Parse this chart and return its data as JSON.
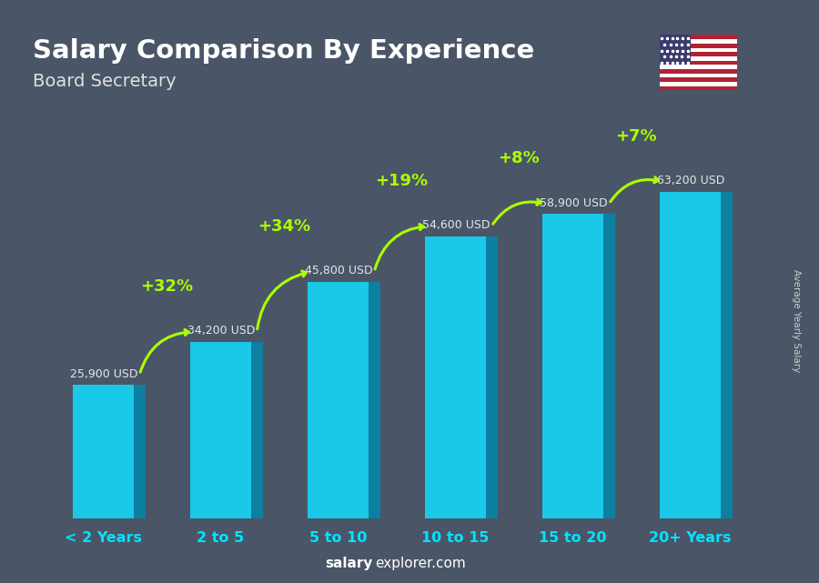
{
  "title": "Salary Comparison By Experience",
  "subtitle": "Board Secretary",
  "categories": [
    "< 2 Years",
    "2 to 5",
    "5 to 10",
    "10 to 15",
    "15 to 20",
    "20+ Years"
  ],
  "values": [
    25900,
    34200,
    45800,
    54600,
    58900,
    63200
  ],
  "labels": [
    "25,900 USD",
    "34,200 USD",
    "45,800 USD",
    "54,600 USD",
    "58,900 USD",
    "63,200 USD"
  ],
  "pct_changes": [
    "+32%",
    "+34%",
    "+19%",
    "+8%",
    "+7%"
  ],
  "bar_color_face": "#1ac8e8",
  "bar_color_side": "#0d7fa0",
  "bar_color_top": "#5de0f5",
  "background_color": "#4a5568",
  "title_color": "#ffffff",
  "subtitle_color": "#e0e0e0",
  "label_color": "#e8e8e8",
  "pct_color": "#aaff00",
  "xticklabel_color": "#00e5ff",
  "footer_salary_color": "#ffffff",
  "footer_explorer_color": "#ffffff",
  "footer_text_bold": "salary",
  "footer_text_normal": "explorer.com",
  "ylabel_text": "Average Yearly Salary",
  "ylabel_color": "#cccccc",
  "ylim": [
    0,
    80000
  ],
  "arrow_color": "#aaff00"
}
